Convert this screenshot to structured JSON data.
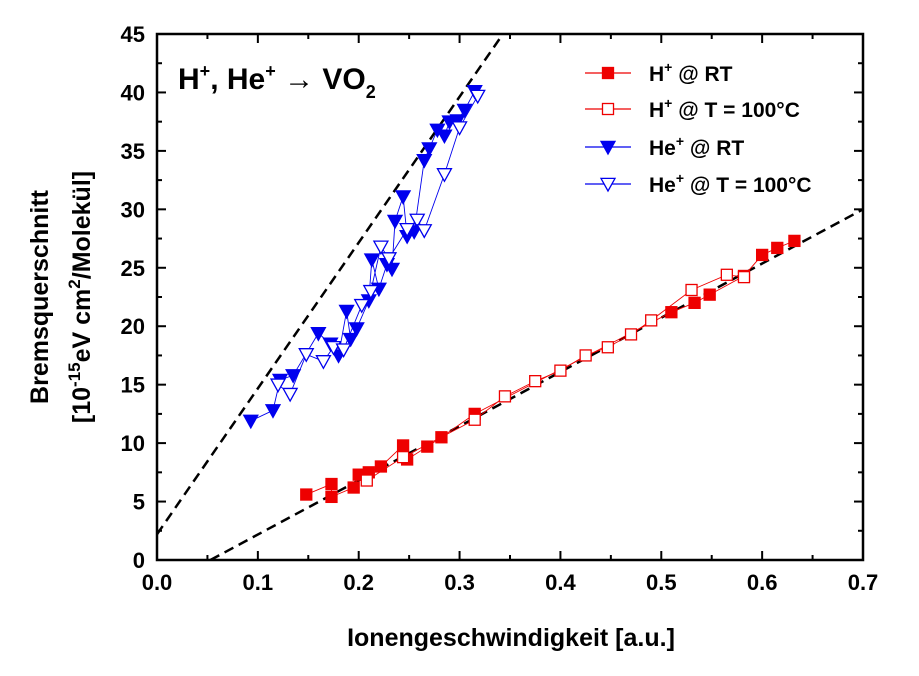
{
  "chart_data": {
    "type": "scatter",
    "title": "",
    "annotation": {
      "species": "H",
      "species_sup": "+",
      "sep": ", ",
      "species2": "He",
      "species2_sup": "+",
      "arrow": " → ",
      "target": "VO",
      "target_sub": "2"
    },
    "xlabel": "Ionengeschwindigkeit [a.u.]",
    "ylabel_line1": "Bremsquerschnitt",
    "ylabel_line2": {
      "a": "[10",
      "a_sup": "-15",
      "b": "eV cm",
      "b_sup": "2",
      "c": "/Molekül]"
    },
    "xlim": [
      0.0,
      0.7
    ],
    "ylim": [
      0,
      45
    ],
    "xticks": [
      "0.0",
      "0.1",
      "0.2",
      "0.3",
      "0.4",
      "0.5",
      "0.6",
      "0.7"
    ],
    "yticks": [
      "0",
      "5",
      "10",
      "15",
      "20",
      "25",
      "30",
      "35",
      "40",
      "45"
    ],
    "legend_position": "top-right",
    "colors": {
      "red": "#ee0000",
      "blue": "#0000ee",
      "fit": "#000000"
    },
    "series": [
      {
        "name": "H+ @ RT",
        "label_base": "H",
        "label_sup": "+",
        "label_rest": " @ RT",
        "color": "#ee0000",
        "marker": "square",
        "filled": true,
        "x": [
          0.148,
          0.173,
          0.173,
          0.195,
          0.2,
          0.21,
          0.222,
          0.244,
          0.248,
          0.268,
          0.282,
          0.315,
          0.51,
          0.533,
          0.548,
          0.582,
          0.6,
          0.615,
          0.632
        ],
        "y": [
          5.6,
          6.5,
          5.4,
          6.2,
          7.3,
          7.5,
          8.0,
          9.8,
          8.6,
          9.7,
          10.5,
          12.5,
          21.2,
          22.0,
          22.7,
          24.3,
          26.1,
          26.7,
          27.3
        ]
      },
      {
        "name": "H+ @ T = 100°C",
        "label_base": "H",
        "label_sup": "+",
        "label_rest": " @ T = 100°C",
        "color": "#ee0000",
        "marker": "square",
        "filled": false,
        "x": [
          0.208,
          0.244,
          0.315,
          0.345,
          0.375,
          0.4,
          0.425,
          0.447,
          0.47,
          0.49,
          0.53,
          0.565,
          0.582
        ],
        "y": [
          6.8,
          8.8,
          12.0,
          14.0,
          15.3,
          16.2,
          17.5,
          18.2,
          19.3,
          20.5,
          23.1,
          24.4,
          24.2
        ]
      },
      {
        "name": "He+ @ RT",
        "label_base": "He",
        "label_sup": "+",
        "label_rest": " @ RT",
        "color": "#0000ee",
        "marker": "triangle-down",
        "filled": true,
        "x": [
          0.093,
          0.115,
          0.122,
          0.135,
          0.16,
          0.172,
          0.18,
          0.188,
          0.192,
          0.198,
          0.21,
          0.213,
          0.22,
          0.228,
          0.233,
          0.236,
          0.244,
          0.248,
          0.255,
          0.265,
          0.27,
          0.278,
          0.285,
          0.29,
          0.298,
          0.305,
          0.315
        ],
        "y": [
          11.9,
          12.8,
          15.4,
          15.8,
          19.4,
          18.5,
          17.5,
          21.3,
          18.9,
          19.8,
          22.2,
          25.7,
          23.2,
          25.3,
          24.9,
          29.0,
          31.1,
          27.7,
          28.1,
          34.2,
          35.2,
          36.8,
          36.3,
          37.5,
          37.6,
          38.5,
          40.1
        ]
      },
      {
        "name": "He+ @ T = 100°C",
        "label_base": "He",
        "label_sup": "+",
        "label_rest": " @ T = 100°C",
        "color": "#0000ee",
        "marker": "triangle-down",
        "filled": false,
        "x": [
          0.12,
          0.132,
          0.148,
          0.165,
          0.175,
          0.185,
          0.203,
          0.212,
          0.222,
          0.23,
          0.248,
          0.258,
          0.265,
          0.285,
          0.3,
          0.318
        ],
        "y": [
          15.0,
          14.2,
          17.6,
          17.0,
          18.2,
          18.0,
          21.8,
          23.0,
          26.8,
          25.8,
          28.3,
          29.1,
          28.2,
          33.0,
          37.0,
          39.7
        ]
      }
    ],
    "fits": [
      {
        "color": "#000000",
        "x": [
          0.0,
          0.343
        ],
        "y": [
          2.2,
          45.0
        ]
      },
      {
        "color": "#000000",
        "x": [
          0.053,
          0.7
        ],
        "y": [
          0.0,
          30.0
        ]
      }
    ]
  }
}
